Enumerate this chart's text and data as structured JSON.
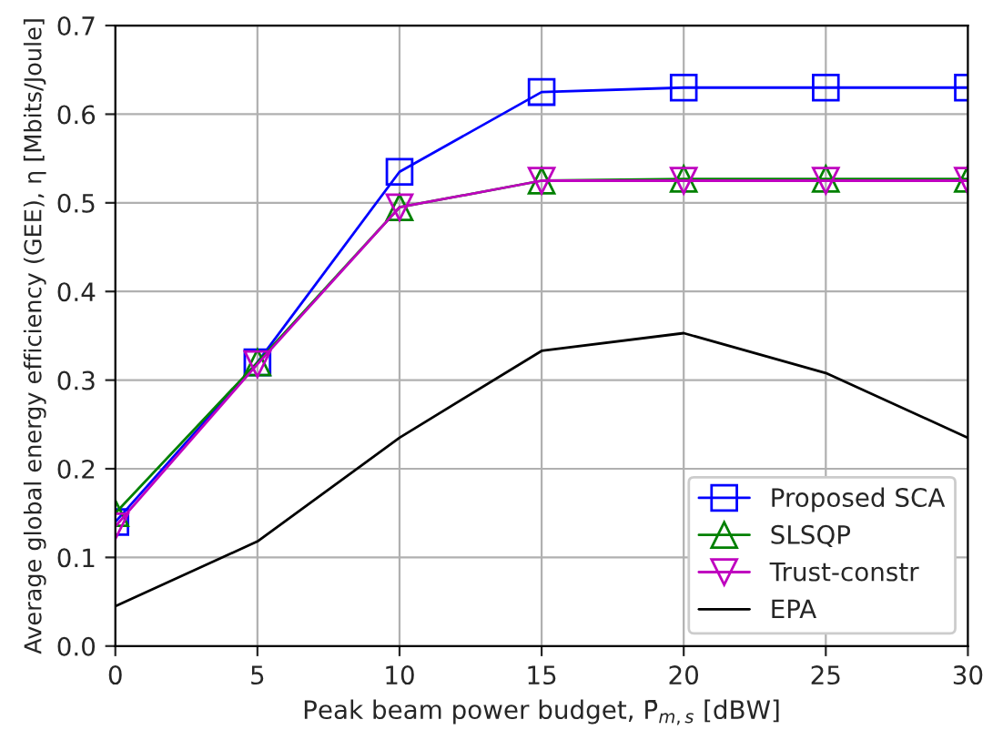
{
  "chart_data": {
    "type": "line",
    "xlabel": "Peak beam power budget, P̄$_{m,s}$ [dBW]",
    "ylabel": "Average global energy efficiency (GEE), η [Mbits/Joule]",
    "x": [
      0,
      5,
      10,
      15,
      20,
      25,
      30
    ],
    "series": [
      {
        "name": "Proposed SCA",
        "color": "#0000ff",
        "marker": "square",
        "values": [
          0.14,
          0.32,
          0.535,
          0.625,
          0.63,
          0.63,
          0.63
        ]
      },
      {
        "name": "SLSQP",
        "color": "#008000",
        "marker": "triangle",
        "values": [
          0.15,
          0.32,
          0.495,
          0.525,
          0.527,
          0.527,
          0.527
        ]
      },
      {
        "name": "Trust-constr",
        "color": "#bf00bf",
        "marker": "triangle_down",
        "values": [
          0.135,
          0.318,
          0.495,
          0.525,
          0.525,
          0.525,
          0.525
        ]
      },
      {
        "name": "EPA",
        "color": "#000000",
        "marker": "none",
        "values": [
          0.045,
          0.118,
          0.235,
          0.333,
          0.353,
          0.308,
          0.235
        ]
      }
    ],
    "xlim": [
      0,
      30
    ],
    "xticks": [
      0,
      5,
      10,
      15,
      20,
      25,
      30
    ],
    "ylim": [
      0,
      0.7
    ],
    "yticks": [
      {
        "value": 0,
        "label": "0.0"
      },
      0.1,
      0.2,
      0.3,
      0.4,
      0.5,
      0.6,
      0.7
    ],
    "grid": true,
    "legend": "bottom right",
    "line_style": "solid"
  }
}
